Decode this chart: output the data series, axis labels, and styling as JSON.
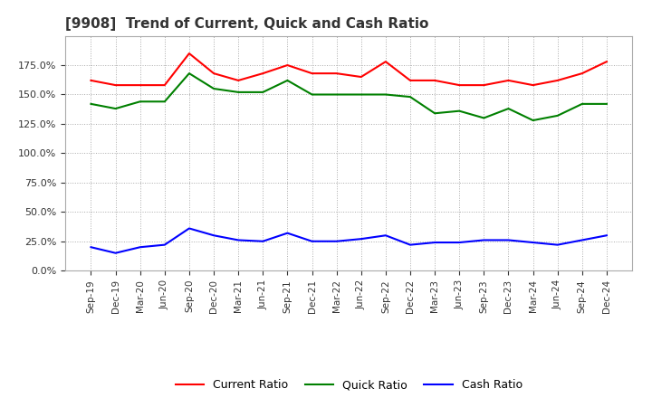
{
  "title": "[9908]  Trend of Current, Quick and Cash Ratio",
  "x_labels": [
    "Sep-19",
    "Dec-19",
    "Mar-20",
    "Jun-20",
    "Sep-20",
    "Dec-20",
    "Mar-21",
    "Jun-21",
    "Sep-21",
    "Dec-21",
    "Mar-22",
    "Jun-22",
    "Sep-22",
    "Dec-22",
    "Mar-23",
    "Jun-23",
    "Sep-23",
    "Dec-23",
    "Mar-24",
    "Jun-24",
    "Sep-24",
    "Dec-24"
  ],
  "current_ratio": [
    162,
    158,
    158,
    158,
    185,
    168,
    162,
    168,
    175,
    168,
    168,
    165,
    178,
    162,
    162,
    158,
    158,
    162,
    158,
    162,
    168,
    178
  ],
  "quick_ratio": [
    142,
    138,
    144,
    144,
    168,
    155,
    152,
    152,
    162,
    150,
    150,
    150,
    150,
    148,
    134,
    136,
    130,
    138,
    128,
    132,
    142,
    142
  ],
  "cash_ratio": [
    20,
    15,
    20,
    22,
    36,
    30,
    26,
    25,
    32,
    25,
    25,
    27,
    30,
    22,
    24,
    24,
    26,
    26,
    24,
    22,
    26,
    30
  ],
  "ylim": [
    0,
    200
  ],
  "yticks": [
    0,
    25,
    50,
    75,
    100,
    125,
    150,
    175
  ],
  "current_color": "#FF0000",
  "quick_color": "#008000",
  "cash_color": "#0000FF",
  "background_color": "#FFFFFF",
  "plot_bg_color": "#FFFFFF",
  "grid_color": "#AAAAAA",
  "grid_style": ":"
}
